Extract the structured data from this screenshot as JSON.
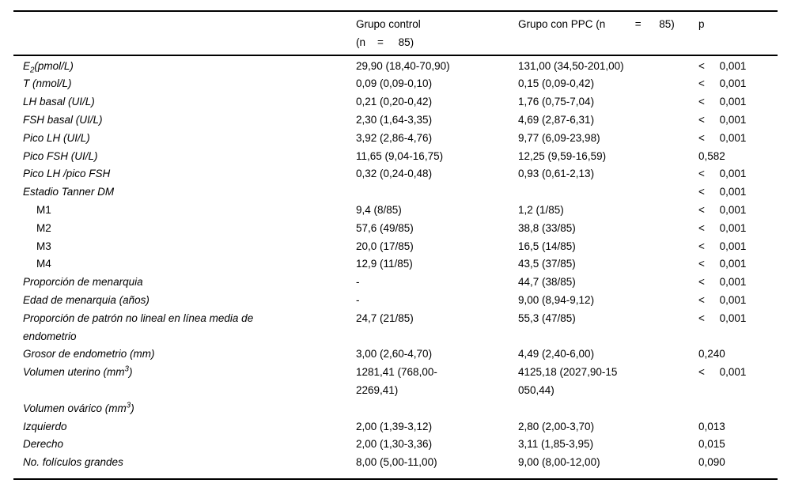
{
  "table": {
    "header": {
      "variable": "",
      "control": "Grupo control\n(n    =     85)",
      "ppc": "Grupo con PPC (n          =      85)",
      "p": "p"
    },
    "rows": [
      {
        "label": "E_{2}(pmol/L)",
        "control": "29,90 (18,40-70,90)",
        "ppc": "131,00 (34,50-201,00)",
        "p": "<     0,001"
      },
      {
        "label": "T (nmol/L)",
        "control": "0,09 (0,09-0,10)",
        "ppc": "0,15 (0,09-0,42)",
        "p": "<     0,001"
      },
      {
        "label": "LH basal (UI/L)",
        "control": "0,21 (0,20-0,42)",
        "ppc": "1,76 (0,75-7,04)",
        "p": "<     0,001"
      },
      {
        "label": "FSH basal (UI/L)",
        "control": "2,30 (1,64-3,35)",
        "ppc": "4,69 (2,87-6,31)",
        "p": "<     0,001"
      },
      {
        "label": "Pico LH (UI/L)",
        "control": "3,92 (2,86-4,76)",
        "ppc": "9,77 (6,09-23,98)",
        "p": "<     0,001"
      },
      {
        "label": "Pico FSH (UI/L)",
        "control": "11,65 (9,04-16,75)",
        "ppc": "12,25 (9,59-16,59)",
        "p": "0,582"
      },
      {
        "label": "Pico LH /pico FSH",
        "control": "0,32 (0,24-0,48)",
        "ppc": "0,93 (0,61-2,13)",
        "p": "<     0,001"
      },
      {
        "label": "Estadio Tanner DM",
        "control": "",
        "ppc": "",
        "p": "<     0,001"
      },
      {
        "label": "M1",
        "plain": true,
        "indent": true,
        "control": "9,4 (8/85)",
        "ppc": "1,2 (1/85)",
        "p": "<     0,001"
      },
      {
        "label": "M2",
        "plain": true,
        "indent": true,
        "control": "57,6 (49/85)",
        "ppc": "38,8 (33/85)",
        "p": "<     0,001"
      },
      {
        "label": "M3",
        "plain": true,
        "indent": true,
        "control": "20,0 (17/85)",
        "ppc": "16,5 (14/85)",
        "p": "<     0,001"
      },
      {
        "label": "M4",
        "plain": true,
        "indent": true,
        "control": "12,9 (11/85)",
        "ppc": "43,5 (37/85)",
        "p": "<     0,001"
      },
      {
        "label": "Proporción de menarquia",
        "control": "-",
        "ppc": "44,7 (38/85)",
        "p": "<     0,001"
      },
      {
        "label": "Edad de menarquia (años)",
        "control": "-",
        "ppc": "9,00 (8,94-9,12)",
        "p": "<     0,001"
      },
      {
        "label": "Proporción de patrón no lineal en línea media de\nendometrio",
        "control": "24,7 (21/85)",
        "ppc": "55,3 (47/85)",
        "p": "<     0,001"
      },
      {
        "label": "Grosor de endometrio (mm)",
        "control": "3,00 (2,60-4,70)",
        "ppc": "4,49 (2,40-6,00)",
        "p": "0,240"
      },
      {
        "label": "Volumen uterino (mm^{3})",
        "control": "1281,41 (768,00-\n2269,41)",
        "ppc": "4125,18 (2027,90-15\n050,44)",
        "p": "<     0,001"
      },
      {
        "label": "Volumen ovárico (mm^{3})",
        "control": "",
        "ppc": "",
        "p": ""
      },
      {
        "label": "Izquierdo",
        "control": "2,00 (1,39-3,12)",
        "ppc": "2,80 (2,00-3,70)",
        "p": "0,013"
      },
      {
        "label": "Derecho",
        "control": "2,00 (1,30-3,36)",
        "ppc": "3,11 (1,85-3,95)",
        "p": "0,015"
      },
      {
        "label": "No. folículos grandes",
        "control": "8,00 (5,00-11,00)",
        "ppc": "9,00 (8,00-12,00)",
        "p": "0,090"
      }
    ],
    "rule_color": "#000000",
    "text_color": "#000000",
    "background_color": "#ffffff"
  }
}
